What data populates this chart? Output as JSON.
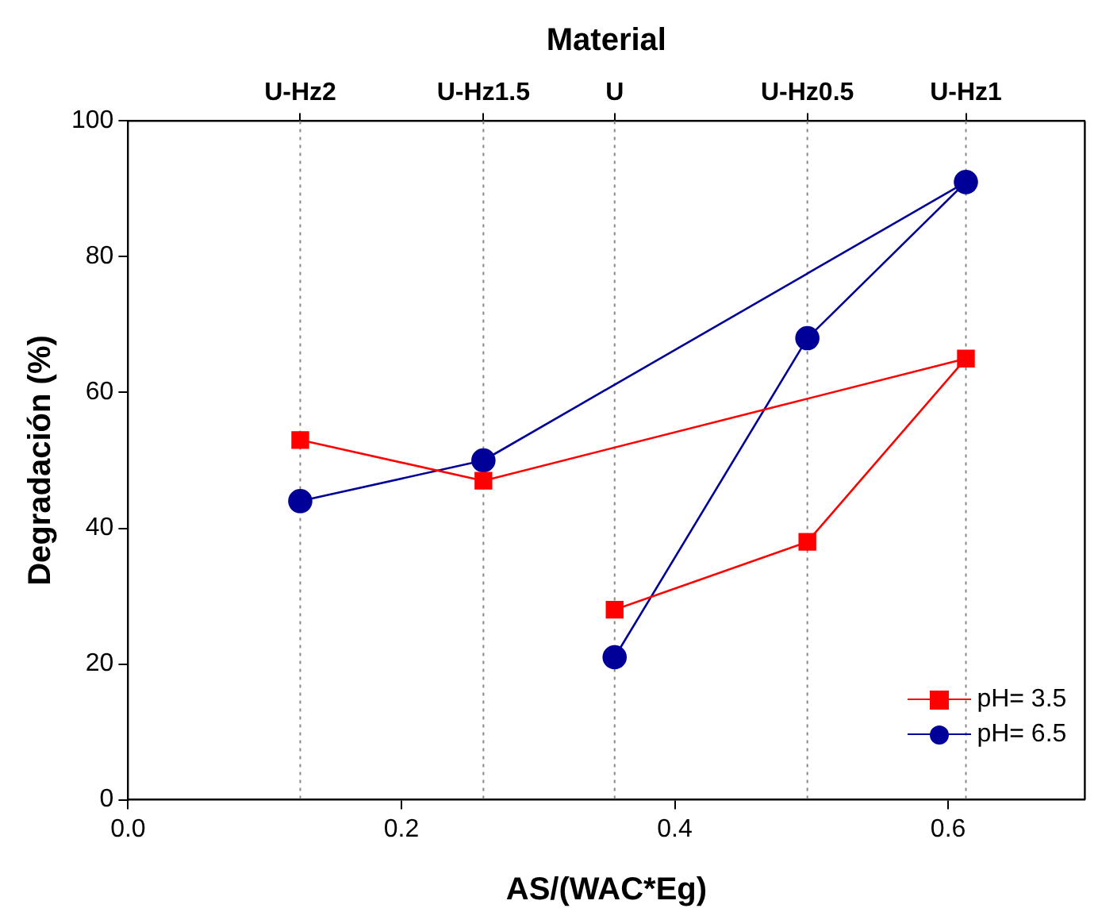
{
  "chart_data": {
    "type": "line",
    "xlabel": "AS/(WAC*Eg)",
    "ylabel": "Degradación (%)",
    "x2label": "Material",
    "xlim": [
      0,
      0.7
    ],
    "xticks": [
      {
        "value": 0,
        "label": "0.0"
      },
      {
        "value": 0.2,
        "label": "0.2"
      },
      {
        "value": 0.4,
        "label": "0.4"
      },
      {
        "value": 0.6,
        "label": "0.6"
      }
    ],
    "annotations": [
      {
        "text": "U-Hz2",
        "x": 0.126
      },
      {
        "text": "U-Hz1.5",
        "x": 0.26
      },
      {
        "text": "U",
        "x": 0.356
      },
      {
        "text": "U-Hz0.5",
        "x": 0.497
      },
      {
        "text": "U-Hz1",
        "x": 0.613
      }
    ],
    "ylim": [
      0,
      100
    ],
    "yticks": [
      0,
      20,
      40,
      60,
      80,
      100
    ],
    "series": [
      {
        "name": "pH= 3.5",
        "color": "#ff0000",
        "marker": "square",
        "x": [
          0.126,
          0.26,
          0.613,
          0.497,
          0.356
        ],
        "values": [
          53,
          47,
          65,
          38,
          28
        ]
      },
      {
        "name": "pH= 6.5",
        "color": "#000099",
        "marker": "circle",
        "x": [
          0.126,
          0.26,
          0.613,
          0.497,
          0.356
        ],
        "values": [
          44,
          50,
          91,
          68,
          21
        ]
      }
    ],
    "ref_lines": [
      {
        "axis": "x",
        "value": 0.126,
        "color": "#888888",
        "line_style": "dotted"
      },
      {
        "axis": "x",
        "value": 0.26,
        "color": "#888888",
        "line_style": "dotted"
      },
      {
        "axis": "x",
        "value": 0.356,
        "color": "#888888",
        "line_style": "dotted"
      },
      {
        "axis": "x",
        "value": 0.497,
        "color": "#888888",
        "line_style": "dotted"
      },
      {
        "axis": "x",
        "value": 0.613,
        "color": "#888888",
        "line_style": "dotted"
      }
    ],
    "grid": false,
    "legend": "bottom right",
    "line_style": "solid"
  }
}
